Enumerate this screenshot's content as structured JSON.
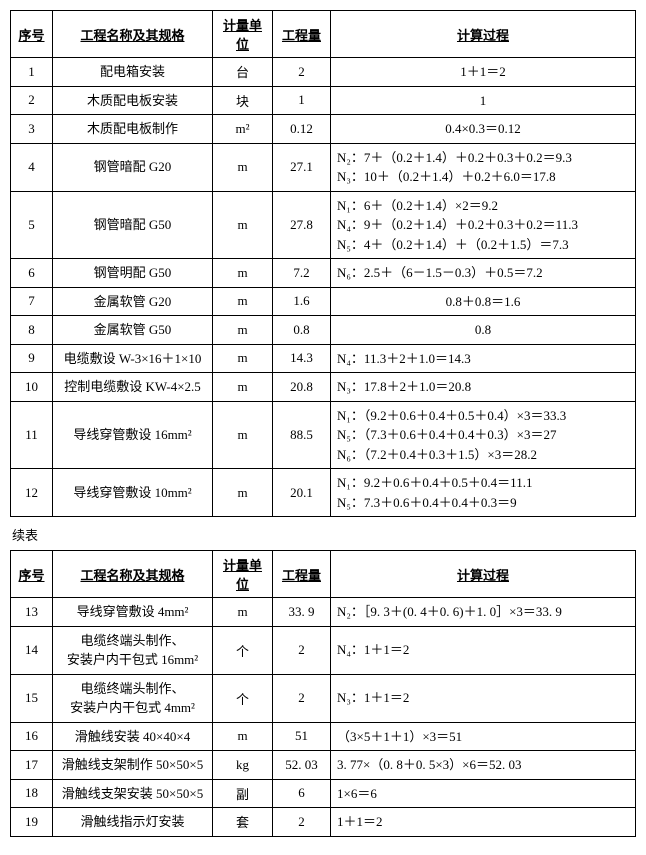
{
  "headers": {
    "idx": "序号",
    "name": "工程名称及其规格",
    "unit": "计量单位",
    "qty": "工程量",
    "calc": "计算过程"
  },
  "continued_label": "续表",
  "table1": {
    "rows": [
      {
        "idx": "1",
        "name": "配电箱安装",
        "unit": "台",
        "qty": "2",
        "calc": "1＋1＝2",
        "center": true
      },
      {
        "idx": "2",
        "name": "木质配电板安装",
        "unit": "块",
        "qty": "1",
        "calc": "1",
        "center": true
      },
      {
        "idx": "3",
        "name": "木质配电板制作",
        "unit": "m²",
        "qty": "0.12",
        "calc": "0.4×0.3＝0.12",
        "center": true
      },
      {
        "idx": "4",
        "name": "钢管暗配 G20",
        "unit": "m",
        "qty": "27.1",
        "calc": "N₂：7＋（0.2＋1.4）＋0.2＋0.3＋0.2＝9.3\nN₃：10＋（0.2＋1.4）＋0.2＋6.0＝17.8",
        "center": false
      },
      {
        "idx": "5",
        "name": "钢管暗配 G50",
        "unit": "m",
        "qty": "27.8",
        "calc": "N₁：6＋（0.2＋1.4）×2＝9.2\nN₄：9＋（0.2＋1.4）＋0.2＋0.3＋0.2＝11.3\nN₅：4＋（0.2＋1.4）＋（0.2＋1.5）＝7.3",
        "center": false
      },
      {
        "idx": "6",
        "name": "钢管明配 G50",
        "unit": "m",
        "qty": "7.2",
        "calc": "N₆：2.5＋（6－1.5－0.3）＋0.5＝7.2",
        "center": false
      },
      {
        "idx": "7",
        "name": "金属软管 G20",
        "unit": "m",
        "qty": "1.6",
        "calc": "0.8＋0.8＝1.6",
        "center": true
      },
      {
        "idx": "8",
        "name": "金属软管 G50",
        "unit": "m",
        "qty": "0.8",
        "calc": "0.8",
        "center": true
      },
      {
        "idx": "9",
        "name": "电缆敷设 W-3×16＋1×10",
        "unit": "m",
        "qty": "14.3",
        "calc": "N₄：11.3＋2＋1.0＝14.3",
        "center": false
      },
      {
        "idx": "10",
        "name": "控制电缆敷设 KW-4×2.5",
        "unit": "m",
        "qty": "20.8",
        "calc": "N₃：17.8＋2＋1.0＝20.8",
        "center": false
      },
      {
        "idx": "11",
        "name": "导线穿管敷设 16mm²",
        "unit": "m",
        "qty": "88.5",
        "calc": "N₁：（9.2＋0.6＋0.4＋0.5＋0.4）×3＝33.3\nN₅：（7.3＋0.6＋0.4＋0.4＋0.3）×3＝27\nN₆：（7.2＋0.4＋0.3＋1.5）×3＝28.2",
        "center": false
      },
      {
        "idx": "12",
        "name": "导线穿管敷设 10mm²",
        "unit": "m",
        "qty": "20.1",
        "calc": "N₁：9.2＋0.6＋0.4＋0.5＋0.4＝11.1\nN₅：7.3＋0.6＋0.4＋0.4＋0.3＝9",
        "center": false
      }
    ]
  },
  "table2": {
    "rows": [
      {
        "idx": "13",
        "name": "导线穿管敷设 4mm²",
        "unit": "m",
        "qty": "33. 9",
        "calc": "N₂：［9. 3＋(0. 4＋0. 6)＋1. 0］×3＝33. 9",
        "center": false
      },
      {
        "idx": "14",
        "name": "电缆终端头制作、\n安装户内干包式 16mm²",
        "unit": "个",
        "qty": "2",
        "calc": "N₄：1＋1＝2",
        "center": false
      },
      {
        "idx": "15",
        "name": "电缆终端头制作、\n安装户内干包式 4mm²",
        "unit": "个",
        "qty": "2",
        "calc": "N₃：1＋1＝2",
        "center": false
      },
      {
        "idx": "16",
        "name": "滑触线安装 40×40×4",
        "unit": "m",
        "qty": "51",
        "calc": "（3×5＋1＋1）×3＝51",
        "center": false
      },
      {
        "idx": "17",
        "name": "滑触线支架制作 50×50×5",
        "unit": "kg",
        "qty": "52. 03",
        "calc": "3. 77×（0. 8＋0. 5×3）×6＝52. 03",
        "center": false
      },
      {
        "idx": "18",
        "name": "滑触线支架安装 50×50×5",
        "unit": "副",
        "qty": "6",
        "calc": "1×6＝6",
        "center": false
      },
      {
        "idx": "19",
        "name": "滑触线指示灯安装",
        "unit": "套",
        "qty": "2",
        "calc": "1＋1＝2",
        "center": false
      }
    ]
  }
}
